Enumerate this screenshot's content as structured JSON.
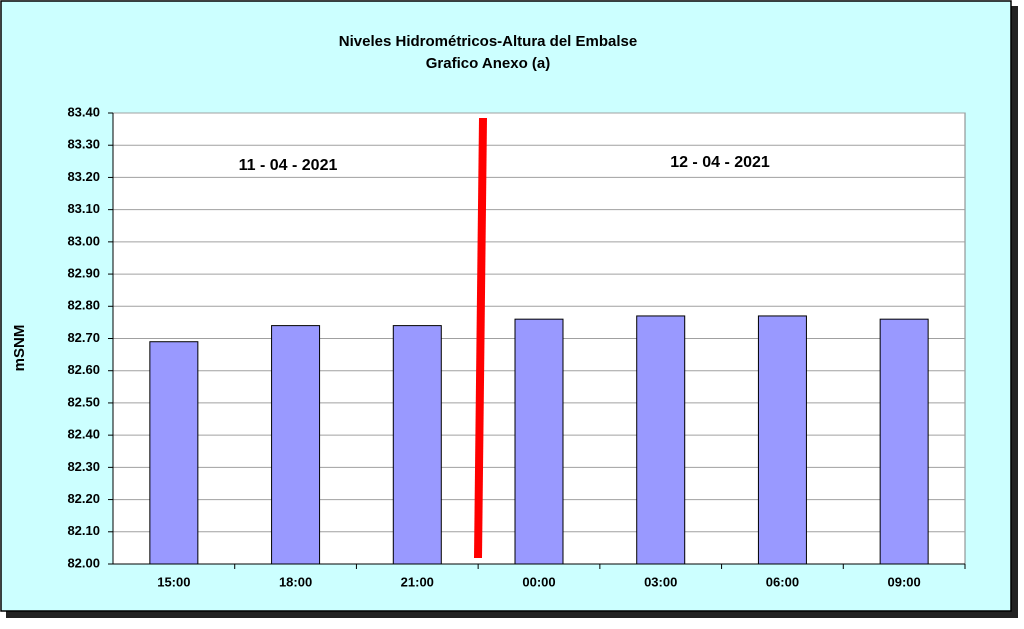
{
  "chart_data": {
    "type": "bar",
    "title": "Niveles Hidrométricos-Altura del Embalse",
    "subtitle": "Grafico Anexo (a)",
    "y_label": "mSNM",
    "annotations": [
      "11 - 04 - 2021",
      "12 - 04 - 2021"
    ],
    "categories": [
      "15:00",
      "18:00",
      "21:00",
      "00:00",
      "03:00",
      "06:00",
      "09:00"
    ],
    "values": [
      82.69,
      82.74,
      82.74,
      82.76,
      82.77,
      82.77,
      82.76
    ],
    "color": "#9999ff",
    "ylim": [
      82.0,
      83.4
    ],
    "yticks": [
      {
        "value": 82.0,
        "label": "82.00"
      },
      {
        "value": 82.1,
        "label": "82.10"
      },
      {
        "value": 82.2,
        "label": "82.20"
      },
      {
        "value": 82.3,
        "label": "82.30"
      },
      {
        "value": 82.4,
        "label": "82.40"
      },
      {
        "value": 82.5,
        "label": "82.50"
      },
      {
        "value": 82.6,
        "label": "82.60"
      },
      {
        "value": 82.7,
        "label": "82.70"
      },
      {
        "value": 82.8,
        "label": "82.80"
      },
      {
        "value": 82.9,
        "label": "82.90"
      },
      {
        "value": 83.0,
        "label": "83.00"
      },
      {
        "value": 83.1,
        "label": "83.10"
      },
      {
        "value": 83.2,
        "label": "83.20"
      },
      {
        "value": 83.3,
        "label": "83.30"
      },
      {
        "value": 83.4,
        "label": "83.40"
      }
    ],
    "grid": true
  }
}
